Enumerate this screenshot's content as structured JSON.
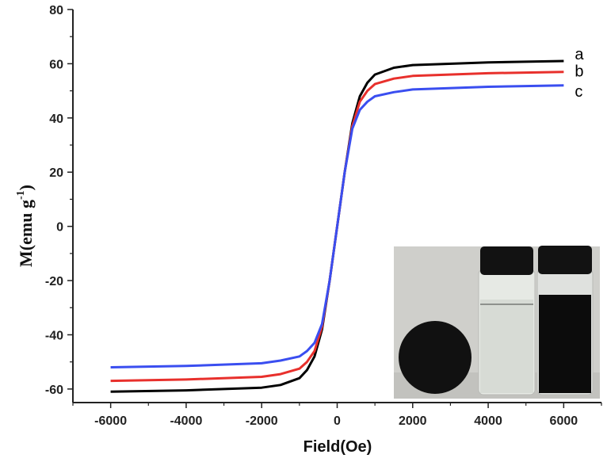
{
  "chart_data": {
    "type": "line",
    "xlabel": "Field(Oe)",
    "ylabel": "M(emu g",
    "ylabel_superscript": "-1",
    "ylabel_close": ")",
    "xlim": [
      -7000,
      7000
    ],
    "ylim": [
      -65,
      80
    ],
    "x_ticks": [
      -6000,
      -4000,
      -2000,
      0,
      2000,
      4000,
      6000
    ],
    "x_tick_labels": [
      "-6000",
      "-4000",
      "-2000",
      "0",
      "2000",
      "4000",
      "6000"
    ],
    "y_ticks": [
      -60,
      -40,
      -20,
      0,
      20,
      40,
      60,
      80
    ],
    "y_tick_labels": [
      "-60",
      "-40",
      "-20",
      "0",
      "20",
      "40",
      "60",
      "80"
    ],
    "grid": false,
    "legend": "none",
    "series": [
      {
        "label": "a",
        "color": "#000000",
        "x": [
          -6000,
          -4000,
          -2000,
          -1500,
          -1000,
          -800,
          -600,
          -400,
          -200,
          0,
          200,
          400,
          600,
          800,
          1000,
          1500,
          2000,
          4000,
          6000
        ],
        "y": [
          -61,
          -60.5,
          -59.5,
          -58.5,
          -56,
          -53,
          -48,
          -38,
          -20,
          0,
          20,
          38,
          48,
          53,
          56,
          58.5,
          59.5,
          60.5,
          61
        ]
      },
      {
        "label": "b",
        "color": "#e8302c",
        "x": [
          -6000,
          -4000,
          -2000,
          -1500,
          -1000,
          -800,
          -600,
          -400,
          -200,
          0,
          200,
          400,
          600,
          800,
          1000,
          1500,
          2000,
          4000,
          6000
        ],
        "y": [
          -57,
          -56.5,
          -55.5,
          -54.5,
          -52.5,
          -50,
          -46,
          -37,
          -20,
          0,
          20,
          37,
          46,
          50,
          52.5,
          54.5,
          55.5,
          56.5,
          57
        ]
      },
      {
        "label": "c",
        "color": "#3a4ef0",
        "x": [
          -6000,
          -4000,
          -2000,
          -1500,
          -1000,
          -800,
          -600,
          -400,
          -200,
          0,
          200,
          400,
          600,
          800,
          1000,
          1500,
          2000,
          4000,
          6000
        ],
        "y": [
          -52,
          -51.5,
          -50.5,
          -49.5,
          -48,
          -46,
          -43,
          -36,
          -20,
          0,
          20,
          36,
          43,
          46,
          48,
          49.5,
          50.5,
          51.5,
          52
        ]
      }
    ]
  },
  "inset_photo": {
    "background": "#cfcfcb",
    "disk_color": "#111111",
    "clear_vial_liquid": "#d7dbd5",
    "dark_vial_liquid": "#0c0c0c",
    "cap_color": "#121212"
  }
}
